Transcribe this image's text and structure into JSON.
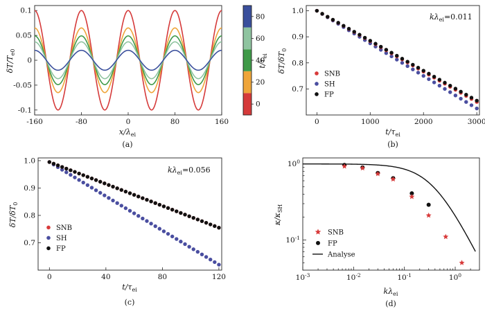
{
  "chart_data": [
    {
      "panel": "(a)",
      "type": "line",
      "xlabel": "x/λei",
      "ylabel": "δT/Te0",
      "xlim": [
        -160,
        160
      ],
      "ylim": [
        -0.11,
        0.11
      ],
      "xticks": [
        "-160",
        "-80",
        "0",
        "80",
        "160"
      ],
      "yticks": [
        "-0.1",
        "-0.05",
        "0",
        "0.05",
        "0.1"
      ],
      "period": 80,
      "series": [
        {
          "color": "#d53a3a",
          "amplitude": 0.1
        },
        {
          "color": "#efa53a",
          "amplitude": 0.065
        },
        {
          "color": "#3f9a48",
          "amplitude": 0.049
        },
        {
          "color": "#8fc4a0",
          "amplitude": 0.037
        },
        {
          "color": "#3a4f9c",
          "amplitude": 0.02
        }
      ],
      "colorbar": {
        "label": "t/τei",
        "ticks": [
          "0",
          "20",
          "40",
          "60",
          "80"
        ],
        "colors": [
          "#d53a3a",
          "#efa53a",
          "#3f9a48",
          "#8fc4a0",
          "#3a4f9c"
        ]
      }
    },
    {
      "panel": "(b)",
      "type": "scatter",
      "annotation": "kλei=0.011",
      "xlabel": "t/τei",
      "ylabel": "δT/δT0",
      "xlim": [
        -200,
        3050
      ],
      "ylim": [
        0.6,
        1.02
      ],
      "xticks": [
        "0",
        "1000",
        "2000",
        "3000"
      ],
      "yticks": [
        "0.7",
        "0.8",
        "0.9",
        "1.0"
      ],
      "legend": "left",
      "series": [
        {
          "name": "SNB",
          "color": "#d83a3a",
          "x0": 0,
          "x1": 3000,
          "n": 31,
          "y0": 1.0,
          "y1": 0.65
        },
        {
          "name": "SH",
          "color": "#4a4ea0",
          "x0": 0,
          "x1": 3000,
          "n": 31,
          "y0": 1.0,
          "y1": 0.625
        },
        {
          "name": "FP",
          "color": "#111111",
          "x0": 0,
          "x1": 3000,
          "n": 31,
          "y0": 1.0,
          "y1": 0.655
        }
      ]
    },
    {
      "panel": "(c)",
      "type": "scatter",
      "annotation": "kλei=0.056",
      "xlabel": "t/τei",
      "ylabel": "δT/δT0",
      "xlim": [
        -8,
        122
      ],
      "ylim": [
        0.6,
        1.01
      ],
      "xticks": [
        "0",
        "40",
        "80",
        "120"
      ],
      "yticks": [
        "0.7",
        "0.8",
        "0.9",
        "1.0"
      ],
      "legend": "left",
      "series": [
        {
          "name": "SNB",
          "color": "#d83a3a",
          "x0": 0,
          "x1": 120,
          "n": 41,
          "y0": 0.995,
          "y1": 0.755
        },
        {
          "name": "SH",
          "color": "#4a4ea0",
          "x0": 0,
          "x1": 120,
          "n": 41,
          "y0": 0.995,
          "y1": 0.62
        },
        {
          "name": "FP",
          "color": "#111111",
          "x0": 0,
          "x1": 120,
          "n": 41,
          "y0": 0.995,
          "y1": 0.755
        }
      ]
    },
    {
      "panel": "(d)",
      "type": "scatter",
      "xlabel": "kλei",
      "ylabel": "κ/κSH",
      "xscale": "log",
      "yscale": "log",
      "xlim": [
        0.001,
        3
      ],
      "ylim": [
        0.04,
        1.2
      ],
      "xticks": [
        "10-3",
        "10-2",
        "10-1",
        "100"
      ],
      "yticks": [
        "100",
        "10-1"
      ],
      "legend": "lower-left",
      "series": [
        {
          "name": "SNB",
          "marker": "star",
          "color": "#d83a3a",
          "x": [
            0.0066,
            0.015,
            0.03,
            0.06,
            0.14,
            0.3,
            0.65,
            1.35
          ],
          "y": [
            0.93,
            0.88,
            0.74,
            0.63,
            0.37,
            0.21,
            0.11,
            0.05
          ]
        },
        {
          "name": "FP",
          "marker": "circle",
          "color": "#111111",
          "x": [
            0.0066,
            0.015,
            0.03,
            0.06,
            0.14,
            0.3
          ],
          "y": [
            0.97,
            0.9,
            0.76,
            0.65,
            0.41,
            0.29
          ]
        },
        {
          "name": "Analyse",
          "marker": "line",
          "color": "#111111",
          "model": "1/(1+(k/kc)^a)",
          "kc": 0.37,
          "a": 1.35,
          "scale": 1.0
        }
      ]
    }
  ],
  "captions": [
    "(a)",
    "(b)",
    "(c)",
    "(d)"
  ]
}
